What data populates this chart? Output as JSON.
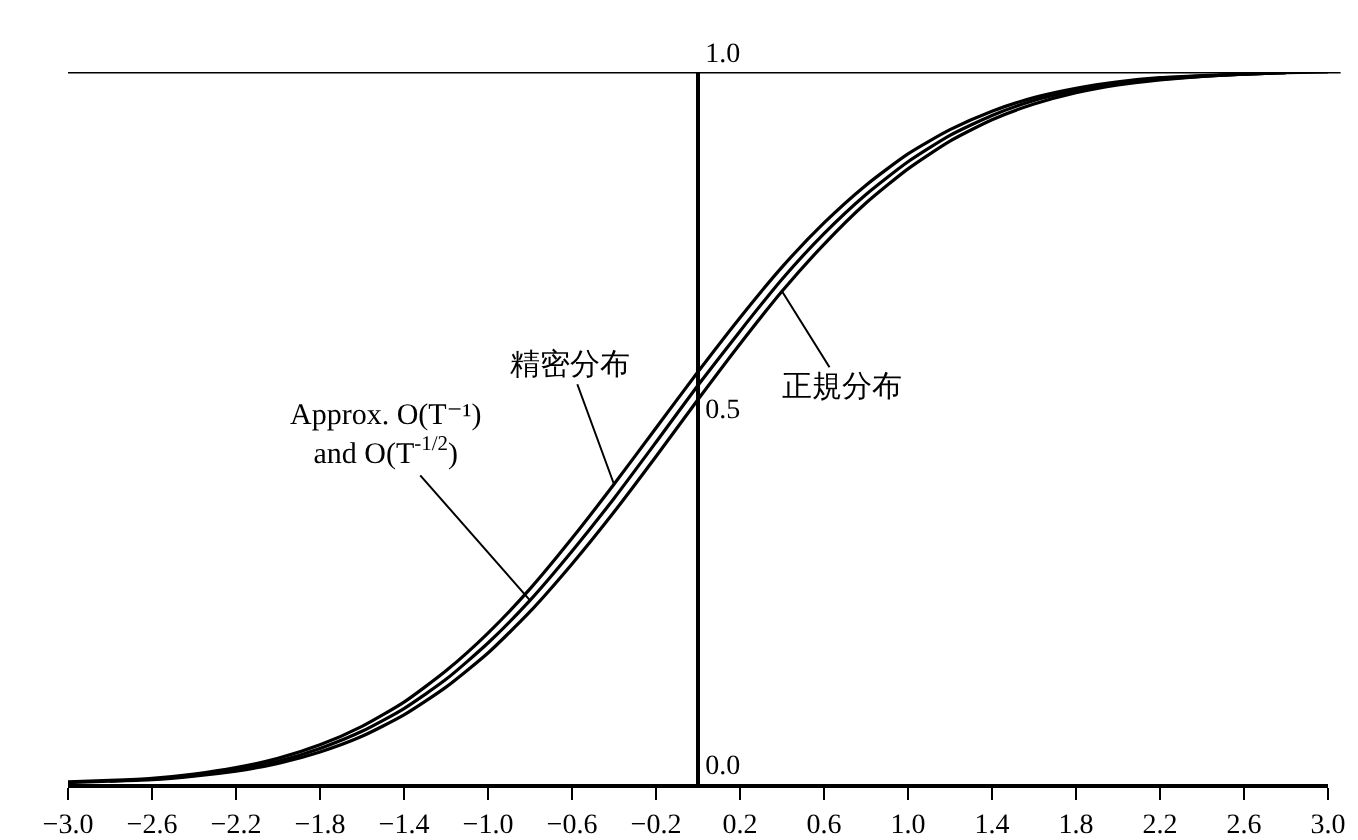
{
  "chart_data": {
    "type": "line",
    "x": [
      -3.0,
      -2.8,
      -2.6,
      -2.4,
      -2.2,
      -2.0,
      -1.8,
      -1.6,
      -1.4,
      -1.2,
      -1.0,
      -0.8,
      -0.6,
      -0.4,
      -0.2,
      0.0,
      0.2,
      0.4,
      0.6,
      0.8,
      1.0,
      1.2,
      1.4,
      1.6,
      1.8,
      2.0,
      2.2,
      2.4,
      2.6,
      2.8,
      3.0
    ],
    "series": [
      {
        "color": "#000000",
        "values": [
          0.002,
          0.004,
          0.006,
          0.011,
          0.018,
          0.029,
          0.045,
          0.067,
          0.097,
          0.136,
          0.184,
          0.242,
          0.309,
          0.382,
          0.46,
          0.54,
          0.618,
          0.692,
          0.758,
          0.816,
          0.864,
          0.903,
          0.933,
          0.955,
          0.971,
          0.982,
          0.989,
          0.994,
          0.997,
          0.999,
          1.0
        ]
      },
      {
        "color": "#000000",
        "values": [
          null,
          0.004,
          0.007,
          0.012,
          0.02,
          0.032,
          0.05,
          0.074,
          0.106,
          0.147,
          0.198,
          0.258,
          0.327,
          0.401,
          0.48,
          0.56,
          0.636,
          0.709,
          0.773,
          0.828,
          0.874,
          0.911,
          0.939,
          0.96,
          0.974,
          0.984,
          0.99,
          0.994,
          0.997,
          0.999,
          null
        ]
      },
      {
        "color": "#000000",
        "values": [
          0.003,
          0.005,
          0.008,
          0.014,
          0.023,
          0.036,
          0.055,
          0.081,
          0.115,
          0.159,
          0.212,
          0.274,
          0.345,
          0.421,
          0.5,
          0.579,
          0.655,
          0.726,
          0.788,
          0.841,
          0.885,
          0.919,
          0.945,
          0.964,
          0.977,
          0.986,
          0.992,
          0.995,
          0.997,
          0.999,
          null
        ]
      }
    ],
    "xlim": [
      -3.0,
      3.0
    ],
    "xticks": [
      {
        "value": -3.0,
        "label": "−3.0"
      },
      {
        "value": -2.6,
        "label": "−2.6"
      },
      {
        "value": -2.2,
        "label": "−2.2"
      },
      {
        "value": -1.8,
        "label": "−1.8"
      },
      {
        "value": -1.4,
        "label": "−1.4"
      },
      {
        "value": -1.0,
        "label": "−1.0"
      },
      {
        "value": -0.6,
        "label": "−0.6"
      },
      {
        "value": -0.2,
        "label": "−0.2"
      },
      0.2,
      0.6,
      {
        "value": 1.0,
        "label": "1.0"
      },
      1.4,
      1.8,
      2.2,
      2.6,
      {
        "value": 3.0,
        "label": "3.0"
      }
    ],
    "ylim": [
      0,
      1.0
    ],
    "yticks": [
      {
        "value": 0,
        "label": "0.0"
      },
      0.5,
      {
        "value": 1.0,
        "label": "1.0"
      }
    ],
    "ref_lines": [
      {
        "axis": "y",
        "value": 1.0,
        "color": "#000000"
      }
    ],
    "annotations": [
      {
        "text": "正規分布",
        "x": 0.4,
        "y": 0.692
      },
      {
        "text": "精密分布",
        "x": -0.4,
        "y": 0.421
      },
      {
        "text": "Approx. O(T⁻¹)\nand O(T$^{-1/2}$)",
        "x": -0.8,
        "y": 0.258
      }
    ],
    "grid": false,
    "marker": "none",
    "line_style": "solid"
  }
}
